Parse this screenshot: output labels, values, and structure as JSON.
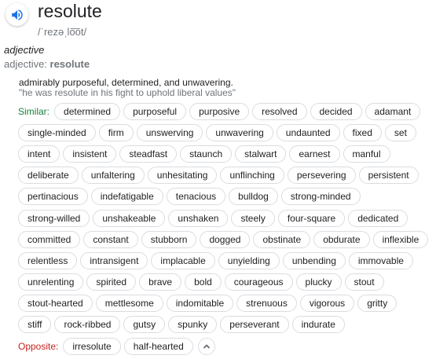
{
  "headword": "resolute",
  "phonetic": "/ˈrezəˌlo͞ot/",
  "part_of_speech": "adjective",
  "form_label": "adjective:",
  "form_word": "resolute",
  "definition": "admirably purposeful, determined, and unwavering.",
  "example": "\"he was resolute in his fight to uphold liberal values\"",
  "similar_label": "Similar:",
  "opposite_label": "Opposite:",
  "similar_rows": [
    [
      "determined",
      "purposeful",
      "purposive",
      "resolved",
      "decided",
      "adamant"
    ],
    [
      "single-minded",
      "firm",
      "unswerving",
      "unwavering",
      "undaunted",
      "fixed",
      "set"
    ],
    [
      "intent",
      "insistent",
      "steadfast",
      "staunch",
      "stalwart",
      "earnest",
      "manful"
    ],
    [
      "deliberate",
      "unfaltering",
      "unhesitating",
      "unflinching",
      "persevering",
      "persistent"
    ],
    [
      "pertinacious",
      "indefatigable",
      "tenacious",
      "bulldog",
      "strong-minded"
    ],
    [
      "strong-willed",
      "unshakeable",
      "unshaken",
      "steely",
      "four-square",
      "dedicated"
    ],
    [
      "committed",
      "constant",
      "stubborn",
      "dogged",
      "obstinate",
      "obdurate",
      "inflexible"
    ],
    [
      "relentless",
      "intransigent",
      "implacable",
      "unyielding",
      "unbending",
      "immovable"
    ],
    [
      "unrelenting",
      "spirited",
      "brave",
      "bold",
      "courageous",
      "plucky",
      "stout"
    ],
    [
      "stout-hearted",
      "mettlesome",
      "indomitable",
      "strenuous",
      "vigorous",
      "gritty"
    ],
    [
      "stiff",
      "rock-ribbed",
      "gutsy",
      "spunky",
      "perseverant",
      "indurate"
    ]
  ],
  "opposites": [
    "irresolute",
    "half-hearted"
  ],
  "icons": {
    "speaker": "speaker-icon",
    "collapse": "chevron-up-icon"
  },
  "colors": {
    "similar_label": "#188038",
    "opposite_label": "#c5221f",
    "speaker": "#1a73e8"
  }
}
